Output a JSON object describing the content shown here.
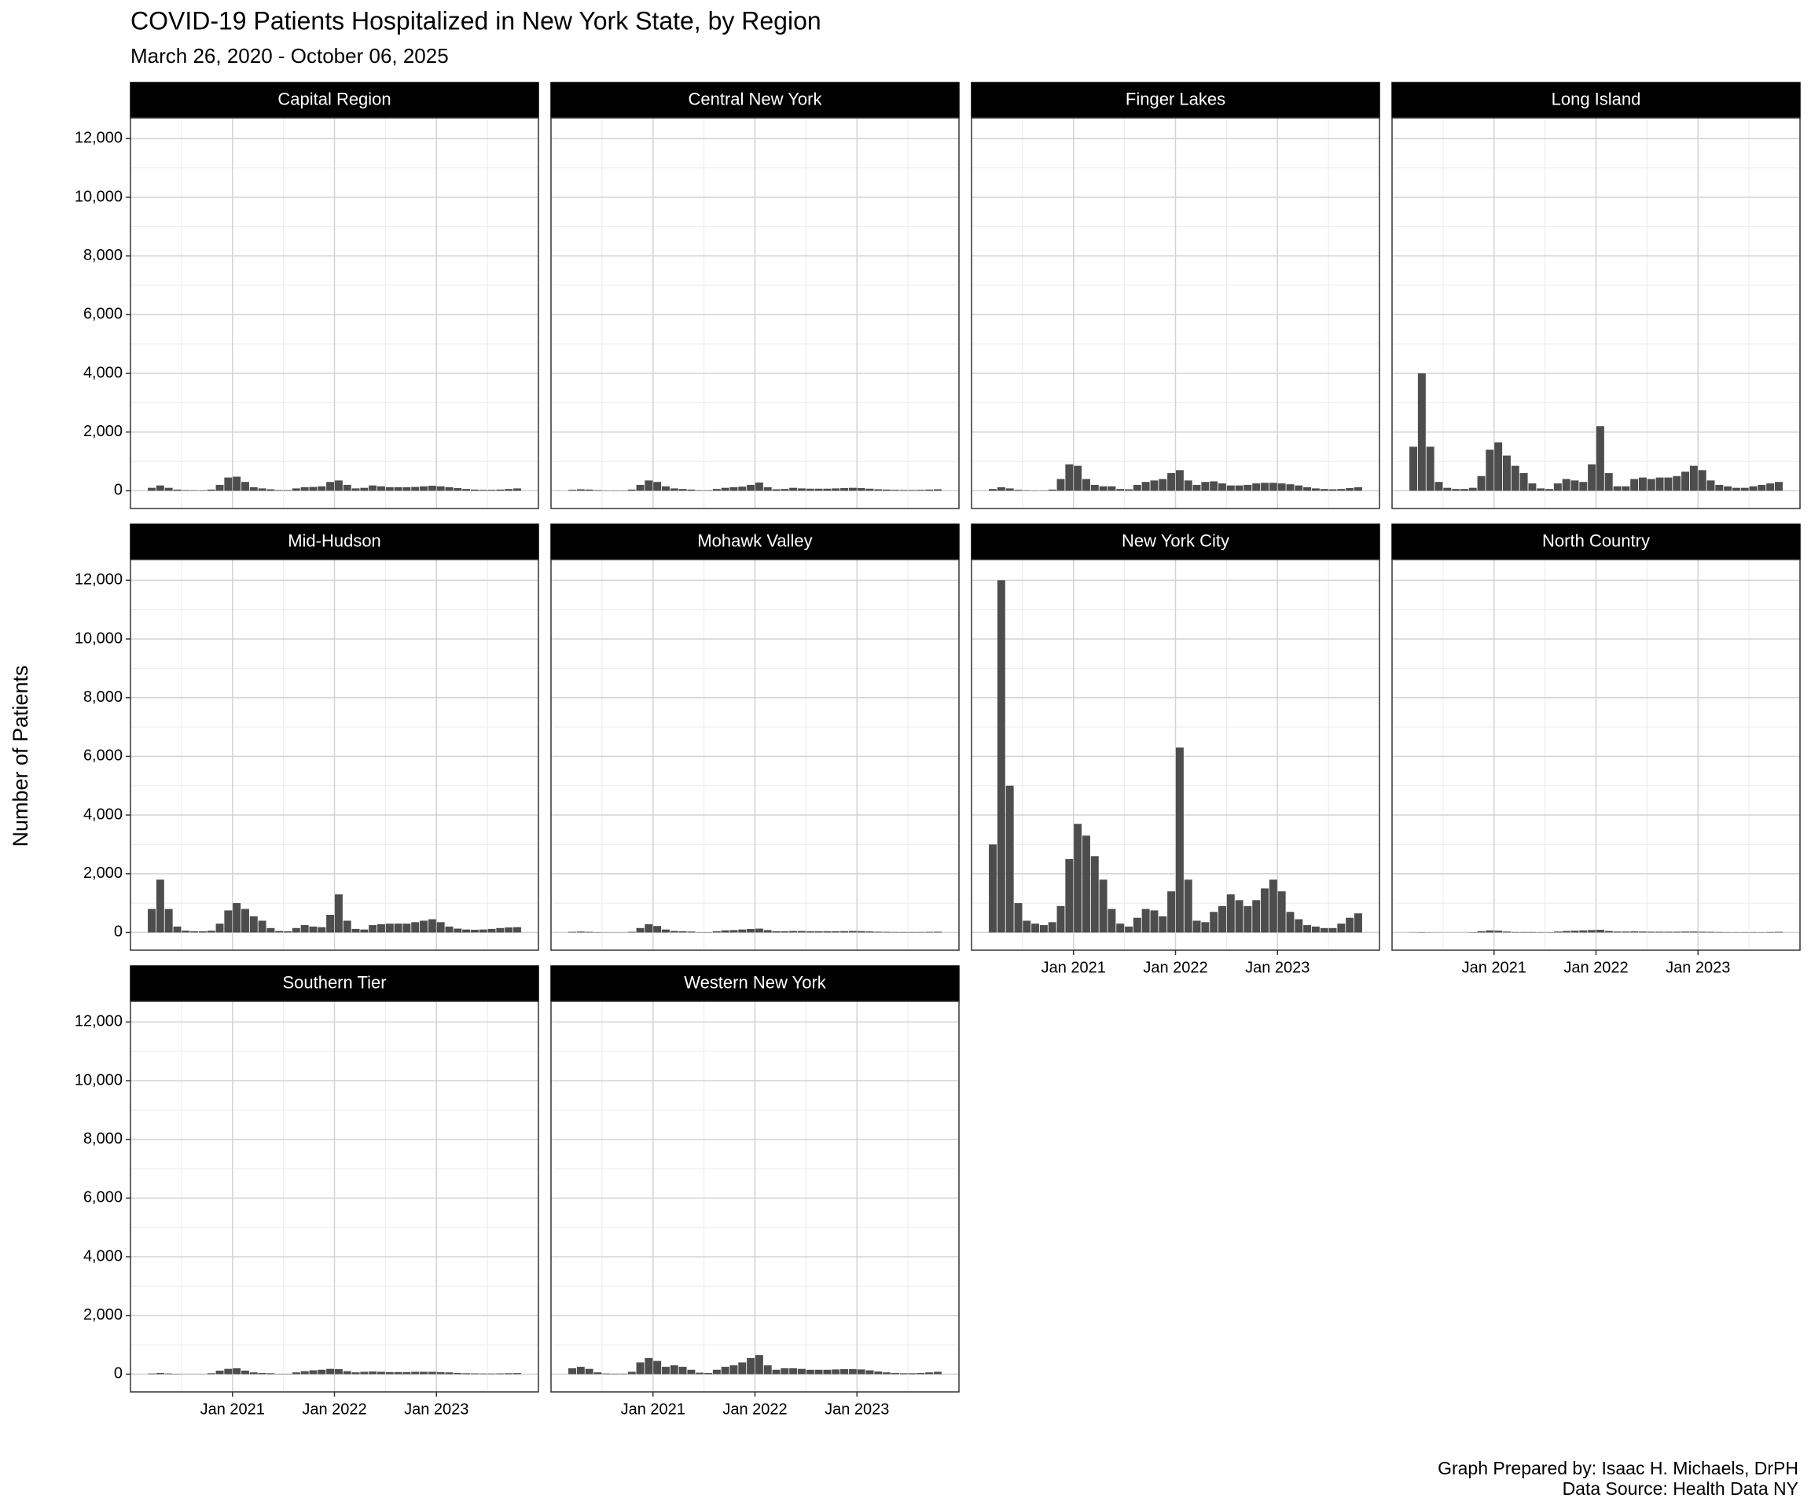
{
  "chart_data": {
    "type": "bar",
    "title": "COVID-19 Patients Hospitalized in New York State, by Region",
    "subtitle": "March 26, 2020 - October 06, 2025",
    "y_label": "Number of Patients",
    "caption": [
      "Graph Prepared by: Isaac H. Michaels, DrPH",
      "Data Source: Health Data NY"
    ],
    "color": "#4d4d4d",
    "grid": true,
    "x": [
      "2020-03",
      "2020-04",
      "2020-05",
      "2020-06",
      "2020-07",
      "2020-08",
      "2020-09",
      "2020-10",
      "2020-11",
      "2020-12",
      "2021-01",
      "2021-02",
      "2021-03",
      "2021-04",
      "2021-05",
      "2021-06",
      "2021-07",
      "2021-08",
      "2021-09",
      "2021-10",
      "2021-11",
      "2021-12",
      "2022-01",
      "2022-02",
      "2022-03",
      "2022-04",
      "2022-05",
      "2022-06",
      "2022-07",
      "2022-08",
      "2022-09",
      "2022-10",
      "2022-11",
      "2022-12",
      "2023-01",
      "2023-02",
      "2023-03",
      "2023-04",
      "2023-05",
      "2023-06",
      "2023-07",
      "2023-08",
      "2023-09",
      "2023-10"
    ],
    "xlim": [
      "2020-01",
      "2024-01"
    ],
    "xticks": [
      {
        "value": "2021-01",
        "label": "Jan 2021"
      },
      {
        "value": "2022-01",
        "label": "Jan 2022"
      },
      {
        "value": "2023-01",
        "label": "Jan 2023"
      }
    ],
    "x_minor_ticks": [
      "2020-07",
      "2021-07",
      "2022-07",
      "2023-07"
    ],
    "ylim": [
      -605,
      12705
    ],
    "yticks": [
      0,
      {
        "value": 2000,
        "label": "2,000"
      },
      {
        "value": 4000,
        "label": "4,000"
      },
      {
        "value": 6000,
        "label": "6,000"
      },
      {
        "value": 8000,
        "label": "8,000"
      },
      {
        "value": 10000,
        "label": "10,000"
      },
      {
        "value": 12000,
        "label": "12,000"
      }
    ],
    "y_minor_ticks": [
      1000,
      3000,
      5000,
      7000,
      9000,
      11000
    ],
    "panels": [
      {
        "name": "Capital Region",
        "values": [
          100,
          180,
          100,
          40,
          20,
          15,
          15,
          40,
          200,
          450,
          480,
          300,
          120,
          80,
          50,
          20,
          20,
          80,
          120,
          130,
          150,
          300,
          350,
          200,
          80,
          100,
          180,
          150,
          120,
          120,
          120,
          130,
          150,
          170,
          150,
          120,
          90,
          60,
          40,
          30,
          30,
          40,
          60,
          80
        ]
      },
      {
        "name": "Central New York",
        "values": [
          30,
          50,
          40,
          20,
          10,
          10,
          10,
          40,
          200,
          350,
          300,
          150,
          80,
          60,
          40,
          15,
          15,
          60,
          100,
          120,
          140,
          200,
          280,
          120,
          50,
          60,
          100,
          80,
          70,
          70,
          70,
          80,
          90,
          100,
          90,
          70,
          50,
          40,
          30,
          25,
          25,
          30,
          40,
          50
        ]
      },
      {
        "name": "Finger Lakes",
        "values": [
          60,
          120,
          80,
          30,
          15,
          10,
          10,
          40,
          400,
          900,
          850,
          400,
          200,
          150,
          150,
          60,
          50,
          200,
          300,
          350,
          400,
          600,
          700,
          350,
          200,
          300,
          320,
          250,
          180,
          180,
          200,
          250,
          270,
          270,
          250,
          220,
          180,
          120,
          80,
          60,
          50,
          60,
          90,
          120
        ]
      },
      {
        "name": "Long Island",
        "values": [
          1500,
          4000,
          1500,
          300,
          100,
          60,
          60,
          100,
          500,
          1400,
          1650,
          1200,
          850,
          600,
          250,
          80,
          60,
          250,
          400,
          350,
          300,
          900,
          2200,
          600,
          150,
          150,
          400,
          450,
          400,
          450,
          450,
          500,
          650,
          850,
          700,
          350,
          200,
          150,
          100,
          100,
          150,
          200,
          250,
          300
        ]
      },
      {
        "name": "Mid-Hudson",
        "values": [
          800,
          1800,
          800,
          200,
          60,
          40,
          40,
          60,
          300,
          750,
          1000,
          800,
          550,
          400,
          150,
          50,
          40,
          150,
          250,
          200,
          180,
          600,
          1300,
          400,
          120,
          100,
          250,
          280,
          300,
          300,
          300,
          350,
          400,
          450,
          350,
          200,
          130,
          100,
          90,
          100,
          120,
          150,
          170,
          180
        ]
      },
      {
        "name": "Mohawk Valley",
        "values": [
          20,
          30,
          20,
          10,
          5,
          5,
          5,
          20,
          150,
          280,
          220,
          100,
          50,
          40,
          30,
          10,
          10,
          40,
          70,
          80,
          100,
          120,
          130,
          80,
          40,
          40,
          50,
          50,
          40,
          40,
          40,
          40,
          45,
          50,
          45,
          35,
          25,
          20,
          15,
          15,
          15,
          15,
          20,
          25
        ]
      },
      {
        "name": "New York City",
        "values": [
          3000,
          12000,
          5000,
          1000,
          400,
          300,
          250,
          350,
          900,
          2500,
          3700,
          3300,
          2600,
          1800,
          800,
          300,
          200,
          500,
          800,
          750,
          550,
          1400,
          6300,
          1800,
          400,
          350,
          700,
          900,
          1300,
          1100,
          900,
          1100,
          1500,
          1800,
          1400,
          700,
          450,
          250,
          200,
          150,
          150,
          300,
          500,
          650
        ]
      },
      {
        "name": "North Country",
        "values": [
          5,
          10,
          5,
          3,
          2,
          2,
          2,
          10,
          40,
          70,
          60,
          30,
          15,
          15,
          15,
          10,
          10,
          30,
          50,
          60,
          70,
          80,
          90,
          50,
          30,
          30,
          35,
          30,
          25,
          25,
          25,
          25,
          30,
          30,
          25,
          20,
          15,
          10,
          10,
          10,
          10,
          10,
          15,
          20
        ]
      },
      {
        "name": "Southern Tier",
        "values": [
          20,
          40,
          20,
          10,
          5,
          5,
          5,
          30,
          120,
          180,
          200,
          120,
          60,
          40,
          30,
          10,
          10,
          60,
          100,
          130,
          150,
          180,
          170,
          100,
          60,
          80,
          90,
          80,
          70,
          70,
          70,
          80,
          80,
          80,
          70,
          60,
          40,
          30,
          25,
          20,
          20,
          25,
          30,
          35
        ]
      },
      {
        "name": "Western New York",
        "values": [
          200,
          250,
          180,
          60,
          20,
          15,
          15,
          80,
          400,
          550,
          450,
          250,
          300,
          250,
          150,
          50,
          40,
          150,
          250,
          300,
          400,
          550,
          650,
          300,
          150,
          200,
          200,
          180,
          150,
          150,
          150,
          160,
          170,
          170,
          160,
          130,
          90,
          60,
          40,
          30,
          30,
          40,
          60,
          80
        ]
      }
    ]
  }
}
